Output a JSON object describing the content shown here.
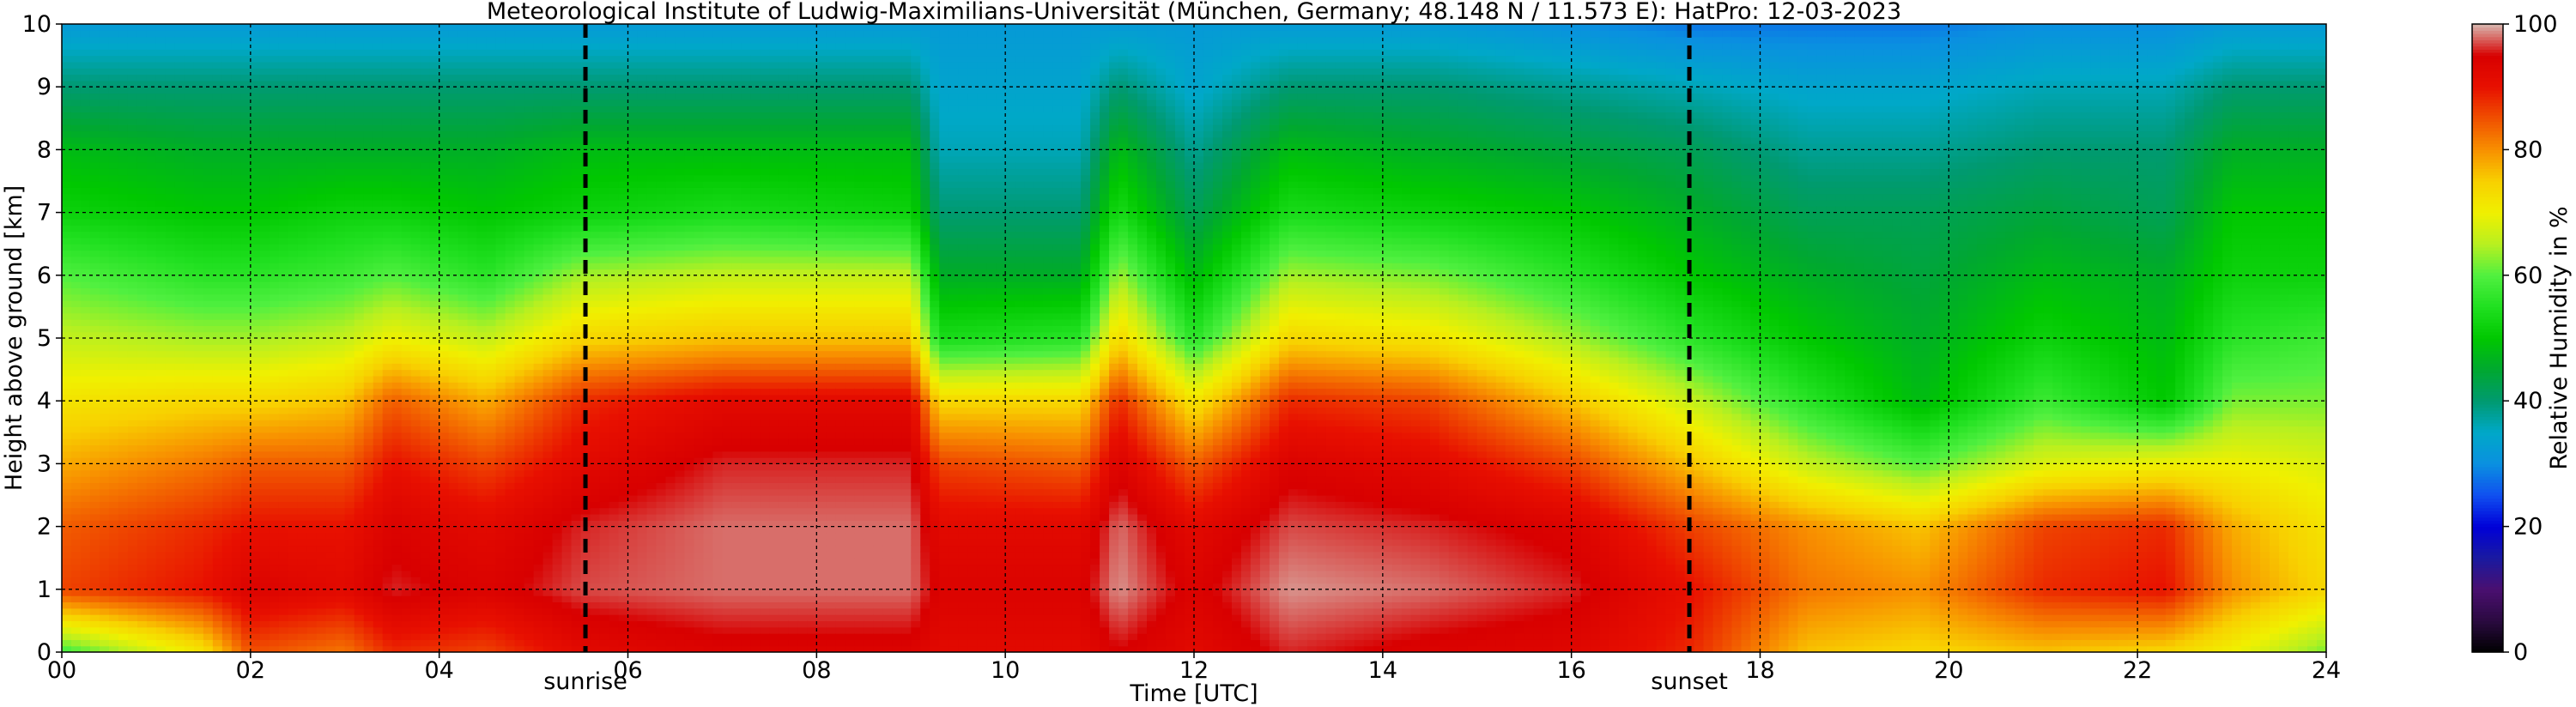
{
  "chart_data": {
    "type": "heatmap",
    "title": "Meteorological Institute of Ludwig-Maximilians-Universität (München, Germany; 48.148 N / 11.573 E):    HatPro: 12-03-2023",
    "xlabel": "Time [UTC]",
    "ylabel": "Height above ground [km]",
    "xlim": [
      0,
      24
    ],
    "ylim": [
      0,
      10
    ],
    "x_ticks": [
      "00",
      "02",
      "04",
      "06",
      "08",
      "10",
      "12",
      "14",
      "16",
      "18",
      "20",
      "22",
      "24"
    ],
    "y_ticks": [
      "0",
      "1",
      "2",
      "3",
      "4",
      "5",
      "6",
      "7",
      "8",
      "9",
      "10"
    ],
    "grid": true,
    "colorbar": {
      "label": "Relative Humidity in %",
      "range": [
        0,
        100
      ],
      "ticks": [
        "0",
        "20",
        "40",
        "60",
        "80",
        "100"
      ]
    },
    "annotations": [
      {
        "text": "sunrise",
        "x": 5.55
      },
      {
        "text": "sunset",
        "x": 17.25
      }
    ],
    "colorscale": [
      {
        "value": 0,
        "color": "#000000"
      },
      {
        "value": 5,
        "color": "#2a0a40"
      },
      {
        "value": 10,
        "color": "#4a0f70"
      },
      {
        "value": 15,
        "color": "#1a1aa0"
      },
      {
        "value": 20,
        "color": "#0000d8"
      },
      {
        "value": 25,
        "color": "#1050f0"
      },
      {
        "value": 30,
        "color": "#0a90e0"
      },
      {
        "value": 35,
        "color": "#00a8c8"
      },
      {
        "value": 40,
        "color": "#009a70"
      },
      {
        "value": 45,
        "color": "#00a830"
      },
      {
        "value": 50,
        "color": "#00c800"
      },
      {
        "value": 55,
        "color": "#20e020"
      },
      {
        "value": 60,
        "color": "#50f040"
      },
      {
        "value": 65,
        "color": "#b8f020"
      },
      {
        "value": 70,
        "color": "#f0f000"
      },
      {
        "value": 75,
        "color": "#f8d000"
      },
      {
        "value": 80,
        "color": "#f89000"
      },
      {
        "value": 85,
        "color": "#f05000"
      },
      {
        "value": 90,
        "color": "#e81000"
      },
      {
        "value": 95,
        "color": "#d80000"
      },
      {
        "value": 100,
        "color": "#d8b8b0"
      }
    ],
    "grid_x": [
      0,
      0.5,
      1,
      1.5,
      2,
      2.5,
      3,
      3.5,
      4,
      4.5,
      5,
      5.5,
      6,
      6.5,
      7,
      7.5,
      8,
      8.5,
      9,
      9.5,
      10,
      10.5,
      11,
      11.5,
      12,
      12.5,
      13,
      13.5,
      14,
      14.5,
      15,
      15.5,
      16,
      16.5,
      17,
      17.5,
      18,
      18.5,
      19,
      19.5,
      20,
      20.5,
      21,
      21.5,
      22,
      22.5,
      23,
      23.5,
      24
    ],
    "profiles": [
      {
        "t": 0,
        "hum": [
          58,
          86,
          84,
          78,
          72,
          66,
          60,
          52,
          48,
          40,
          32
        ]
      },
      {
        "t": 1.5,
        "hum": [
          72,
          90,
          88,
          82,
          74,
          64,
          56,
          50,
          46,
          40,
          32
        ]
      },
      {
        "t": 2,
        "hum": [
          85,
          94,
          90,
          84,
          74,
          64,
          56,
          50,
          46,
          40,
          32
        ]
      },
      {
        "t": 3,
        "hum": [
          82,
          92,
          90,
          84,
          76,
          66,
          58,
          52,
          46,
          40,
          32
        ]
      },
      {
        "t": 3.5,
        "hum": [
          88,
          96,
          94,
          90,
          84,
          70,
          60,
          52,
          46,
          40,
          32
        ]
      },
      {
        "t": 4.5,
        "hum": [
          86,
          94,
          92,
          86,
          78,
          66,
          56,
          50,
          46,
          40,
          32
        ]
      },
      {
        "t": 5.5,
        "hum": [
          92,
          97,
          96,
          92,
          88,
          74,
          64,
          52,
          48,
          40,
          32
        ]
      },
      {
        "t": 7,
        "hum": [
          94,
          98,
          98,
          96,
          92,
          76,
          66,
          54,
          48,
          40,
          32
        ]
      },
      {
        "t": 9,
        "hum": [
          94,
          98,
          98,
          96,
          92,
          76,
          66,
          52,
          48,
          40,
          32
        ]
      },
      {
        "t": 9.3,
        "hum": [
          92,
          94,
          92,
          86,
          74,
          54,
          46,
          40,
          36,
          34,
          32
        ]
      },
      {
        "t": 10.8,
        "hum": [
          92,
          94,
          92,
          84,
          74,
          56,
          46,
          40,
          36,
          34,
          32
        ]
      },
      {
        "t": 11.2,
        "hum": [
          95,
          99,
          98,
          94,
          88,
          74,
          64,
          54,
          48,
          40,
          32
        ]
      },
      {
        "t": 12,
        "hum": [
          92,
          94,
          92,
          84,
          72,
          56,
          48,
          42,
          38,
          34,
          32
        ]
      },
      {
        "t": 13,
        "hum": [
          96,
          99,
          97,
          94,
          88,
          74,
          64,
          54,
          48,
          40,
          32
        ]
      },
      {
        "t": 14.5,
        "hum": [
          94,
          98,
          96,
          92,
          86,
          72,
          62,
          52,
          46,
          40,
          32
        ]
      },
      {
        "t": 16,
        "hum": [
          93,
          96,
          94,
          86,
          76,
          64,
          56,
          50,
          44,
          38,
          30
        ]
      },
      {
        "t": 17.3,
        "hum": [
          88,
          90,
          86,
          76,
          66,
          56,
          50,
          46,
          42,
          36,
          28
        ]
      },
      {
        "t": 18.5,
        "hum": [
          76,
          82,
          80,
          66,
          56,
          50,
          46,
          42,
          38,
          34,
          28
        ]
      },
      {
        "t": 19.7,
        "hum": [
          74,
          80,
          76,
          60,
          48,
          46,
          44,
          42,
          38,
          34,
          28
        ]
      },
      {
        "t": 21,
        "hum": [
          76,
          88,
          86,
          68,
          58,
          52,
          48,
          44,
          40,
          36,
          30
        ]
      },
      {
        "t": 22.3,
        "hum": [
          74,
          90,
          88,
          70,
          50,
          48,
          46,
          42,
          40,
          36,
          30
        ]
      },
      {
        "t": 23,
        "hum": [
          70,
          80,
          78,
          70,
          62,
          56,
          52,
          50,
          46,
          40,
          32
        ]
      },
      {
        "t": 24,
        "hum": [
          62,
          74,
          72,
          68,
          62,
          58,
          52,
          50,
          46,
          40,
          32
        ]
      }
    ]
  }
}
